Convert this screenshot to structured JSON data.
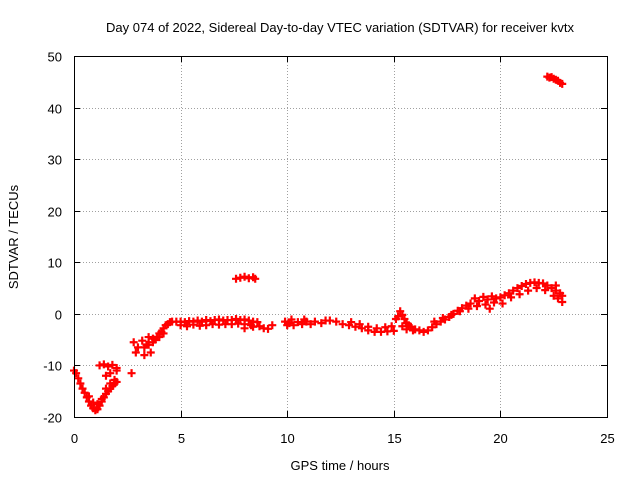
{
  "chart_data": {
    "type": "scatter",
    "title": "Day 074 of 2022, Sidereal Day-to-day VTEC variation (SDTVAR) for receiver kvtx",
    "xlabel": "GPS time / hours",
    "ylabel": "SDTVAR / TECUs",
    "xlim": [
      0,
      25
    ],
    "ylim": [
      -20,
      50
    ],
    "xticks": [
      0,
      5,
      10,
      15,
      20,
      25
    ],
    "yticks": [
      -20,
      -10,
      0,
      10,
      20,
      30,
      40,
      50
    ],
    "xtick_labels": [
      "0",
      "5",
      "10",
      "15",
      "20",
      "25"
    ],
    "ytick_labels": [
      "-20",
      "-10",
      "0",
      "10",
      "20",
      "30",
      "40",
      "50"
    ],
    "grid": true,
    "marker": "plus",
    "color": "#ff0000",
    "series": [
      {
        "name": "kvtx",
        "points": [
          [
            0.0,
            -11.0
          ],
          [
            0.1,
            -11.5
          ],
          [
            0.2,
            -12.5
          ],
          [
            0.3,
            -13.5
          ],
          [
            0.4,
            -14.5
          ],
          [
            0.5,
            -15.3
          ],
          [
            0.6,
            -16.2
          ],
          [
            0.7,
            -17.0
          ],
          [
            0.8,
            -17.8
          ],
          [
            0.9,
            -18.3
          ],
          [
            1.0,
            -18.7
          ],
          [
            1.1,
            -18.5
          ],
          [
            1.2,
            -17.8
          ],
          [
            1.3,
            -17.0
          ],
          [
            1.4,
            -16.2
          ],
          [
            1.5,
            -15.5
          ],
          [
            1.6,
            -15.0
          ],
          [
            1.7,
            -14.5
          ],
          [
            1.8,
            -14.0
          ],
          [
            1.9,
            -13.5
          ],
          [
            2.0,
            -13.2
          ],
          [
            0.7,
            -16.0
          ],
          [
            0.9,
            -17.2
          ],
          [
            1.1,
            -17.5
          ],
          [
            1.3,
            -16.5
          ],
          [
            1.5,
            -14.5
          ],
          [
            1.7,
            -13.5
          ],
          [
            1.9,
            -12.8
          ],
          [
            1.2,
            -10.0
          ],
          [
            1.4,
            -9.8
          ],
          [
            1.6,
            -10.2
          ],
          [
            1.8,
            -9.9
          ],
          [
            2.0,
            -10.5
          ],
          [
            1.5,
            -12.0
          ],
          [
            1.7,
            -11.5
          ],
          [
            2.0,
            -11.0
          ],
          [
            2.7,
            -11.5
          ],
          [
            2.8,
            -5.5
          ],
          [
            2.9,
            -7.5
          ],
          [
            3.0,
            -6.5
          ],
          [
            3.2,
            -5.2
          ],
          [
            3.3,
            -8.0
          ],
          [
            3.4,
            -6.0
          ],
          [
            3.5,
            -4.5
          ],
          [
            3.6,
            -7.5
          ],
          [
            3.7,
            -5.5
          ],
          [
            3.8,
            -5.0
          ],
          [
            3.9,
            -4.5
          ],
          [
            4.0,
            -3.8
          ],
          [
            4.1,
            -3.5
          ],
          [
            4.2,
            -2.8
          ],
          [
            4.3,
            -2.2
          ],
          [
            4.4,
            -2.0
          ],
          [
            4.5,
            -1.6
          ],
          [
            4.6,
            -1.5
          ],
          [
            4.8,
            -1.5
          ],
          [
            3.3,
            -6.5
          ],
          [
            3.5,
            -6.0
          ],
          [
            3.7,
            -4.8
          ],
          [
            4.0,
            -4.5
          ],
          [
            4.2,
            -3.8
          ],
          [
            5.0,
            -1.5
          ],
          [
            5.2,
            -1.6
          ],
          [
            5.4,
            -1.4
          ],
          [
            5.6,
            -1.5
          ],
          [
            5.8,
            -1.3
          ],
          [
            6.0,
            -1.5
          ],
          [
            6.2,
            -1.2
          ],
          [
            6.4,
            -1.4
          ],
          [
            6.6,
            -1.2
          ],
          [
            6.8,
            -1.1
          ],
          [
            7.0,
            -1.3
          ],
          [
            7.2,
            -1.2
          ],
          [
            7.4,
            -1.2
          ],
          [
            7.6,
            -1.0
          ],
          [
            7.8,
            -1.2
          ],
          [
            8.0,
            -1.1
          ],
          [
            8.2,
            -1.3
          ],
          [
            8.4,
            -1.5
          ],
          [
            5.0,
            -2.2
          ],
          [
            5.3,
            -2.4
          ],
          [
            5.6,
            -2.1
          ],
          [
            5.9,
            -2.3
          ],
          [
            6.2,
            -2.2
          ],
          [
            6.5,
            -2.0
          ],
          [
            6.8,
            -2.1
          ],
          [
            7.1,
            -2.0
          ],
          [
            7.4,
            -2.0
          ],
          [
            7.7,
            -1.9
          ],
          [
            8.0,
            -2.0
          ],
          [
            8.3,
            -2.2
          ],
          [
            8.0,
            -2.8
          ],
          [
            8.4,
            -2.5
          ],
          [
            8.6,
            -1.6
          ],
          [
            8.7,
            -2.4
          ],
          [
            8.9,
            -2.8
          ],
          [
            9.1,
            -2.9
          ],
          [
            9.3,
            -2.2
          ],
          [
            7.6,
            6.8
          ],
          [
            7.8,
            7.0
          ],
          [
            8.0,
            7.2
          ],
          [
            8.2,
            6.9
          ],
          [
            8.4,
            7.1
          ],
          [
            8.5,
            6.8
          ],
          [
            9.9,
            -1.5
          ],
          [
            10.0,
            -2.2
          ],
          [
            10.1,
            -1.8
          ],
          [
            10.3,
            -2.2
          ],
          [
            10.5,
            -1.6
          ],
          [
            10.7,
            -2.0
          ],
          [
            10.9,
            -1.5
          ],
          [
            11.1,
            -2.0
          ],
          [
            11.3,
            -1.5
          ],
          [
            11.6,
            -1.8
          ],
          [
            11.8,
            -1.3
          ],
          [
            10.2,
            -1.1
          ],
          [
            10.8,
            -1.1
          ],
          [
            12.0,
            -1.3
          ],
          [
            12.3,
            -1.5
          ],
          [
            12.6,
            -2.0
          ],
          [
            12.9,
            -2.2
          ],
          [
            13.2,
            -2.5
          ],
          [
            13.5,
            -2.8
          ],
          [
            13.8,
            -3.2
          ],
          [
            14.1,
            -3.5
          ],
          [
            14.4,
            -3.5
          ],
          [
            14.7,
            -3.4
          ],
          [
            15.0,
            -3.3
          ],
          [
            13.0,
            -1.6
          ],
          [
            13.4,
            -2.0
          ],
          [
            13.8,
            -2.5
          ],
          [
            14.2,
            -2.8
          ],
          [
            14.6,
            -2.6
          ],
          [
            14.9,
            -2.4
          ],
          [
            15.1,
            -1.0
          ],
          [
            15.2,
            -0.5
          ],
          [
            15.3,
            0.5
          ],
          [
            15.4,
            -0.2
          ],
          [
            15.5,
            -1.0
          ],
          [
            15.6,
            -1.8
          ],
          [
            15.7,
            -2.2
          ],
          [
            15.8,
            -2.5
          ],
          [
            16.0,
            -3.0
          ],
          [
            16.2,
            -3.2
          ],
          [
            16.4,
            -3.5
          ],
          [
            15.4,
            -2.4
          ],
          [
            15.6,
            -3.0
          ],
          [
            15.9,
            -3.2
          ],
          [
            16.6,
            -3.2
          ],
          [
            16.8,
            -2.6
          ],
          [
            17.0,
            -2.0
          ],
          [
            17.2,
            -1.5
          ],
          [
            17.4,
            -1.1
          ],
          [
            17.6,
            -0.6
          ],
          [
            17.8,
            0.0
          ],
          [
            18.0,
            0.6
          ],
          [
            18.2,
            1.1
          ],
          [
            18.4,
            1.6
          ],
          [
            18.6,
            2.0
          ],
          [
            16.9,
            -1.5
          ],
          [
            17.3,
            -0.8
          ],
          [
            17.7,
            -0.2
          ],
          [
            18.1,
            0.5
          ],
          [
            18.5,
            1.0
          ],
          [
            18.8,
            3.0
          ],
          [
            19.0,
            2.5
          ],
          [
            19.2,
            3.3
          ],
          [
            19.4,
            2.8
          ],
          [
            19.6,
            3.4
          ],
          [
            19.8,
            3.0
          ],
          [
            20.0,
            3.2
          ],
          [
            20.2,
            3.6
          ],
          [
            20.4,
            4.0
          ],
          [
            20.6,
            4.5
          ],
          [
            20.8,
            5.0
          ],
          [
            21.0,
            5.4
          ],
          [
            21.2,
            5.8
          ],
          [
            21.4,
            6.0
          ],
          [
            21.6,
            6.1
          ],
          [
            21.8,
            6.0
          ],
          [
            22.0,
            5.9
          ],
          [
            22.2,
            5.5
          ],
          [
            22.4,
            5.0
          ],
          [
            22.6,
            4.5
          ],
          [
            22.8,
            4.0
          ],
          [
            22.9,
            3.5
          ],
          [
            18.9,
            1.5
          ],
          [
            19.3,
            1.8
          ],
          [
            19.7,
            2.2
          ],
          [
            19.5,
            1.0
          ],
          [
            20.1,
            2.0
          ],
          [
            20.5,
            3.2
          ],
          [
            20.9,
            3.8
          ],
          [
            21.3,
            4.5
          ],
          [
            21.7,
            5.0
          ],
          [
            22.1,
            4.6
          ],
          [
            22.5,
            3.5
          ],
          [
            22.7,
            3.0
          ],
          [
            22.9,
            2.3
          ],
          [
            22.6,
            5.5
          ],
          [
            22.2,
            46.0
          ],
          [
            22.3,
            45.8
          ],
          [
            22.4,
            45.9
          ],
          [
            22.5,
            45.6
          ],
          [
            22.6,
            45.4
          ],
          [
            22.7,
            45.2
          ],
          [
            22.8,
            44.8
          ],
          [
            22.9,
            44.6
          ]
        ]
      }
    ]
  }
}
